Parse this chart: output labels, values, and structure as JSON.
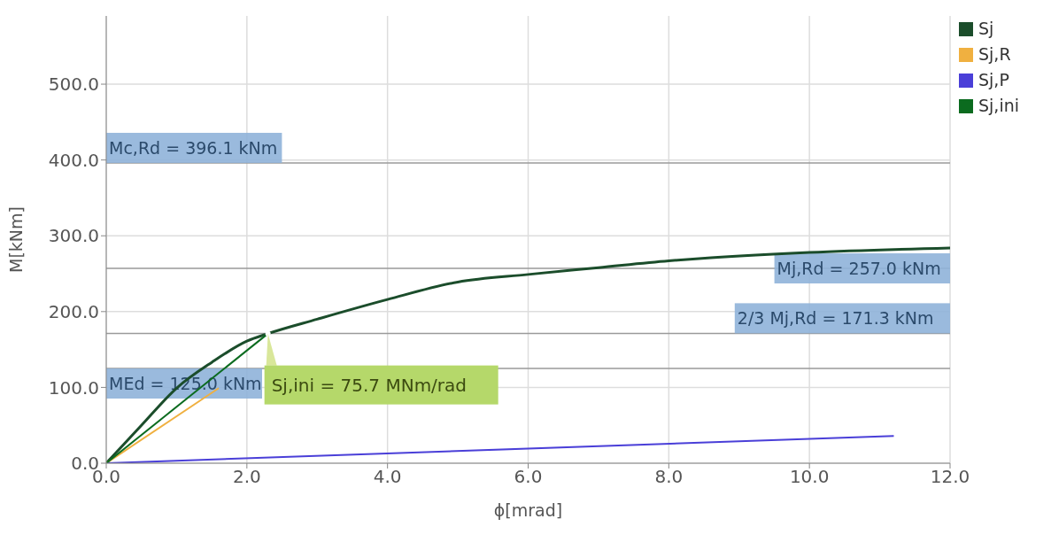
{
  "chart_data": {
    "type": "line",
    "xlabel": "ϕ[mrad]",
    "ylabel": "M[kNm]",
    "xlim": [
      0,
      12
    ],
    "ylim": [
      0,
      590
    ],
    "xticks": [
      {
        "value": 0,
        "label": "0.0"
      },
      {
        "value": 2,
        "label": "2.0"
      },
      {
        "value": 4,
        "label": "4.0"
      },
      {
        "value": 6,
        "label": "6.0"
      },
      {
        "value": 8,
        "label": "8.0"
      },
      {
        "value": 10,
        "label": "10.0"
      },
      {
        "value": 12,
        "label": "12.0"
      }
    ],
    "yticks": [
      {
        "value": 0,
        "label": "0.0"
      },
      {
        "value": 100,
        "label": "100.0"
      },
      {
        "value": 200,
        "label": "200.0"
      },
      {
        "value": 300,
        "label": "300.0"
      },
      {
        "value": 400,
        "label": "400.0"
      },
      {
        "value": 500,
        "label": "500.0"
      }
    ],
    "grid": true,
    "legend": "top right",
    "marker": "none",
    "line_style": "solid",
    "series": [
      {
        "name": "Sj",
        "color": "#1b4d2b",
        "x": [
          0,
          0.5,
          1,
          1.5,
          2,
          2.3,
          3,
          4,
          5,
          6,
          7,
          8,
          8.6,
          10,
          12
        ],
        "values": [
          0,
          50,
          99,
          133,
          161,
          171,
          190,
          216,
          239,
          249,
          258,
          267,
          271,
          278,
          284
        ]
      },
      {
        "name": "Sj,R",
        "color": "#f0b040",
        "x": [
          0,
          1.6
        ],
        "values": [
          0,
          99
        ]
      },
      {
        "name": "Sj,P",
        "color": "#4a3fd8",
        "x": [
          0,
          11.2
        ],
        "values": [
          0,
          36
        ]
      },
      {
        "name": "Sj,ini",
        "color": "#0b6b1f",
        "x": [
          0,
          2.3
        ],
        "values": [
          0,
          171
        ]
      }
    ],
    "ref_lines": [
      {
        "axis": "y",
        "value": 396.1,
        "label": "Mc,Rd = 396.1 kNm",
        "color": "#9a9a9a"
      },
      {
        "axis": "y",
        "value": 257.0,
        "label": "Mj,Rd = 257.0 kNm",
        "color": "#9a9a9a"
      },
      {
        "axis": "y",
        "value": 171.3,
        "label": "2/3 Mj,Rd = 171.3 kNm",
        "color": "#9a9a9a"
      },
      {
        "axis": "y",
        "value": 125.0,
        "label": "MEd = 125.0 kNm",
        "color": "#9a9a9a"
      }
    ],
    "annotations": [
      {
        "text": "Sj,ini = 75.7 MNm/rad",
        "x": 2.3,
        "y": 171
      }
    ]
  }
}
